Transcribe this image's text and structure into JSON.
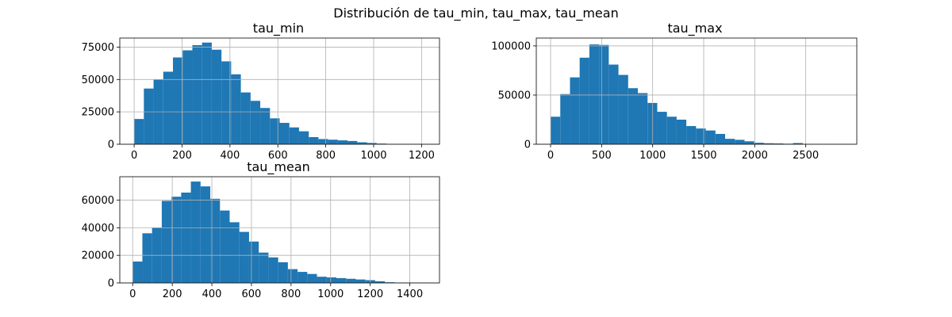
{
  "figure": {
    "title": "Distribución de tau_min, tau_max, tau_mean",
    "colors": {
      "bar": "#1f77b4",
      "grid": "#b0b0b0",
      "axis": "#000000",
      "background": "#ffffff"
    }
  },
  "chart_data": [
    {
      "type": "bar",
      "title": "tau_min",
      "xlabel": "",
      "ylabel": "",
      "grid": true,
      "xlim": [
        -60,
        1275
      ],
      "ylim": [
        0,
        82000
      ],
      "xticks": [
        0,
        200,
        400,
        600,
        800,
        1000,
        1200
      ],
      "yticks": [
        0,
        25000,
        50000,
        75000
      ],
      "bin_start": 0,
      "bin_width": 40.5,
      "values": [
        19500,
        43000,
        50000,
        56000,
        67000,
        72500,
        76500,
        78500,
        73000,
        64000,
        54000,
        40000,
        33500,
        28000,
        20000,
        16500,
        13000,
        10000,
        5500,
        4000,
        3500,
        3000,
        2500,
        1500,
        1000,
        500,
        300,
        200,
        100,
        50
      ]
    },
    {
      "type": "bar",
      "title": "tau_max",
      "xlabel": "",
      "ylabel": "",
      "grid": true,
      "xlim": [
        -140,
        3000
      ],
      "ylim": [
        0,
        108000
      ],
      "xticks": [
        0,
        500,
        1000,
        1500,
        2000,
        2500
      ],
      "yticks": [
        0,
        50000,
        100000
      ],
      "bin_start": 0,
      "bin_width": 95,
      "values": [
        28000,
        51000,
        68000,
        88000,
        101500,
        101000,
        81000,
        70500,
        57000,
        52000,
        42000,
        33000,
        28000,
        25000,
        18500,
        16000,
        14000,
        10500,
        5500,
        4500,
        3000,
        1500,
        1000,
        800,
        500,
        1200,
        300,
        200,
        100,
        50
      ]
    },
    {
      "type": "bar",
      "title": "tau_mean",
      "xlabel": "",
      "ylabel": "",
      "grid": true,
      "xlim": [
        -65,
        1550
      ],
      "ylim": [
        0,
        77000
      ],
      "xticks": [
        0,
        200,
        400,
        600,
        800,
        1000,
        1200,
        1400
      ],
      "yticks": [
        0,
        20000,
        40000,
        60000
      ],
      "bin_start": 0,
      "bin_width": 49,
      "values": [
        15500,
        36000,
        40000,
        59500,
        62500,
        65500,
        73500,
        70000,
        61000,
        52500,
        44000,
        37000,
        30000,
        22000,
        18500,
        15000,
        10000,
        8000,
        6500,
        4500,
        4000,
        3500,
        3000,
        2500,
        2000,
        1200,
        500,
        200,
        100,
        50
      ]
    }
  ]
}
